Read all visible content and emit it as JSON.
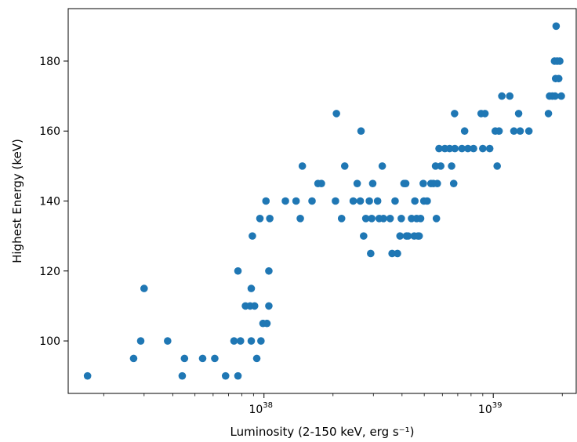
{
  "chart_data": {
    "type": "scatter",
    "xlabel": "Luminosity (2-150 keV, erg s⁻¹)",
    "ylabel": "Highest Energy (keV)",
    "xscale": "log",
    "xlim": [
      1.4e+37,
      2.3e+39
    ],
    "ylim": [
      85,
      195
    ],
    "x_ticks": [
      {
        "value": 1e+38,
        "mantissa": "10",
        "exponent": "38"
      },
      {
        "value": 1e+39,
        "mantissa": "10",
        "exponent": "39"
      }
    ],
    "y_ticks": [
      100,
      120,
      140,
      160,
      180
    ],
    "grid": false,
    "marker_color": "#1f77b4",
    "points": [
      [
        1.7e+37,
        90
      ],
      [
        2.7e+37,
        95
      ],
      [
        2.9e+37,
        100
      ],
      [
        3e+37,
        115
      ],
      [
        3.8e+37,
        100
      ],
      [
        4.4e+37,
        90
      ],
      [
        4.5e+37,
        95
      ],
      [
        5.4e+37,
        95
      ],
      [
        6.1e+37,
        95
      ],
      [
        6.8e+37,
        90
      ],
      [
        7.4e+37,
        100
      ],
      [
        7.7e+37,
        90
      ],
      [
        7.7e+37,
        120
      ],
      [
        7.9e+37,
        100
      ],
      [
        8.3e+37,
        110
      ],
      [
        8.7e+37,
        110
      ],
      [
        8.8e+37,
        115
      ],
      [
        8.8e+37,
        100
      ],
      [
        8.9e+37,
        130
      ],
      [
        9.1e+37,
        110
      ],
      [
        9.3e+37,
        95
      ],
      [
        9.6e+37,
        135
      ],
      [
        9.7e+37,
        100
      ],
      [
        9.9e+37,
        105
      ],
      [
        1.02e+38,
        140
      ],
      [
        1.03e+38,
        105
      ],
      [
        1.05e+38,
        110
      ],
      [
        1.05e+38,
        120
      ],
      [
        1.06e+38,
        135
      ],
      [
        1.24e+38,
        140
      ],
      [
        1.38e+38,
        140
      ],
      [
        1.44e+38,
        135
      ],
      [
        1.47e+38,
        150
      ],
      [
        1.62e+38,
        140
      ],
      [
        1.72e+38,
        145
      ],
      [
        1.78e+38,
        145
      ],
      [
        2.05e+38,
        140
      ],
      [
        2.07e+38,
        165
      ],
      [
        2.18e+38,
        135
      ],
      [
        2.25e+38,
        150
      ],
      [
        2.45e+38,
        140
      ],
      [
        2.55e+38,
        145
      ],
      [
        2.63e+38,
        140
      ],
      [
        2.65e+38,
        160
      ],
      [
        2.72e+38,
        130
      ],
      [
        2.78e+38,
        135
      ],
      [
        2.88e+38,
        140
      ],
      [
        2.92e+38,
        125
      ],
      [
        2.95e+38,
        135
      ],
      [
        2.98e+38,
        145
      ],
      [
        3.13e+38,
        140
      ],
      [
        3.18e+38,
        135
      ],
      [
        3.28e+38,
        150
      ],
      [
        3.32e+38,
        135
      ],
      [
        3.55e+38,
        135
      ],
      [
        3.62e+38,
        125
      ],
      [
        3.73e+38,
        140
      ],
      [
        3.82e+38,
        125
      ],
      [
        3.92e+38,
        130
      ],
      [
        3.97e+38,
        135
      ],
      [
        4.08e+38,
        145
      ],
      [
        4.15e+38,
        145
      ],
      [
        4.18e+38,
        130
      ],
      [
        4.25e+38,
        130
      ],
      [
        4.4e+38,
        135
      ],
      [
        4.52e+38,
        130
      ],
      [
        4.55e+38,
        140
      ],
      [
        4.63e+38,
        135
      ],
      [
        4.7e+38,
        130
      ],
      [
        4.75e+38,
        130
      ],
      [
        4.82e+38,
        135
      ],
      [
        4.95e+38,
        145
      ],
      [
        4.98e+38,
        140
      ],
      [
        5.15e+38,
        140
      ],
      [
        5.35e+38,
        145
      ],
      [
        5.48e+38,
        145
      ],
      [
        5.6e+38,
        150
      ],
      [
        5.65e+38,
        135
      ],
      [
        5.7e+38,
        145
      ],
      [
        5.8e+38,
        155
      ],
      [
        5.9e+38,
        150
      ],
      [
        6.15e+38,
        155
      ],
      [
        6.45e+38,
        155
      ],
      [
        6.58e+38,
        150
      ],
      [
        6.72e+38,
        145
      ],
      [
        6.78e+38,
        165
      ],
      [
        6.8e+38,
        155
      ],
      [
        7.3e+38,
        155
      ],
      [
        7.5e+38,
        160
      ],
      [
        7.75e+38,
        155
      ],
      [
        8.2e+38,
        155
      ],
      [
        8.85e+38,
        165
      ],
      [
        9e+38,
        155
      ],
      [
        9.2e+38,
        165
      ],
      [
        9.65e+38,
        155
      ],
      [
        1.02e+39,
        160
      ],
      [
        1.04e+39,
        150
      ],
      [
        1.06e+39,
        160
      ],
      [
        1.09e+39,
        170
      ],
      [
        1.18e+39,
        170
      ],
      [
        1.23e+39,
        160
      ],
      [
        1.29e+39,
        165
      ],
      [
        1.31e+39,
        160
      ],
      [
        1.43e+39,
        160
      ],
      [
        1.74e+39,
        165
      ],
      [
        1.76e+39,
        170
      ],
      [
        1.81e+39,
        170
      ],
      [
        1.85e+39,
        180
      ],
      [
        1.86e+39,
        170
      ],
      [
        1.87e+39,
        175
      ],
      [
        1.88e+39,
        190
      ],
      [
        1.9e+39,
        180
      ],
      [
        1.93e+39,
        175
      ],
      [
        1.95e+39,
        180
      ],
      [
        1.98e+39,
        170
      ]
    ]
  }
}
